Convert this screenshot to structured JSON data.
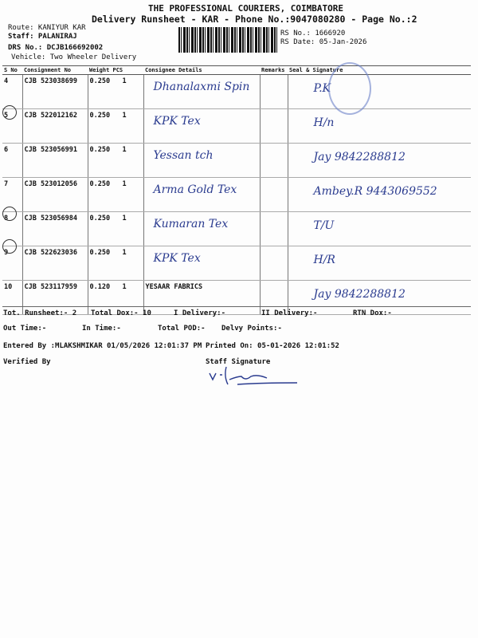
{
  "header": {
    "company": "THE PROFESSIONAL COURIERS, COIMBATORE",
    "subtitle": "Delivery Runsheet - KAR - Phone No.:9047080280 - Page No.:2",
    "route": "Route: KANIYUR KAR",
    "staff": "Staff: PALANIRAJ",
    "drs_no": "DRS No.: DCJB166692002",
    "vehicle": "Vehicle: Two Wheeler Delivery",
    "rs_no": "RS No.: 1666920",
    "rs_date": "RS Date: 05-Jan-2026"
  },
  "table": {
    "columns": [
      "S No",
      "Consignment No",
      "Weight  PCS",
      "Consignee Details",
      "Remarks",
      "Seal & Signature"
    ],
    "rows": [
      {
        "sno": "4",
        "consignment": "CJB 523038699",
        "weight": "0.250",
        "pcs": "1",
        "consignee": "Dhanalaxmi Spin",
        "handwritten": true,
        "signature": "P.K"
      },
      {
        "sno": "5",
        "consignment": "CJB 522012162",
        "weight": "0.250",
        "pcs": "1",
        "consignee": "KPK Tex",
        "handwritten": true,
        "signature": "H/n"
      },
      {
        "sno": "6",
        "consignment": "CJB 523056991",
        "weight": "0.250",
        "pcs": "1",
        "consignee": "Yessan tch",
        "handwritten": true,
        "signature": "Jay 9842288812"
      },
      {
        "sno": "7",
        "consignment": "CJB 523012056",
        "weight": "0.250",
        "pcs": "1",
        "consignee": "Arma Gold Tex",
        "handwritten": true,
        "signature": "Ambey.R 9443069552"
      },
      {
        "sno": "8",
        "consignment": "CJB 523056984",
        "weight": "0.250",
        "pcs": "1",
        "consignee": "Kumaran Tex",
        "handwritten": true,
        "signature": "T/U"
      },
      {
        "sno": "9",
        "consignment": "CJB 522623036",
        "weight": "0.250",
        "pcs": "1",
        "consignee": "KPK Tex",
        "handwritten": true,
        "signature": "H/R"
      },
      {
        "sno": "10",
        "consignment": "CJB 523117959",
        "weight": "0.120",
        "pcs": "1",
        "consignee": "YESAAR  FABRICS",
        "handwritten": false,
        "signature": "Jay 9842288812"
      }
    ]
  },
  "summary": {
    "tot_runsheet": "Tot. Runsheet:- 2",
    "total_dox": "Total Dox:-   10",
    "i_delivery": "I Delivery:-",
    "ii_delivery": "II Delivery:-",
    "rtn_dox": "RTN Dox:-",
    "out_time": "Out Time:-",
    "in_time": "In Time:-",
    "total_pod": "Total POD:-",
    "delvy_points": "Delvy Points:-",
    "entered_by": "Entered By :MLAKSHMIKAR 01/05/2026 12:01:37 PM",
    "printed_on": "Printed On: 05-01-2026 12:01:52",
    "verified_by": "Verified By",
    "staff_signature": "Staff Signature"
  },
  "colors": {
    "ink": "#2a3b8f",
    "stamp": "#6a80c8"
  }
}
